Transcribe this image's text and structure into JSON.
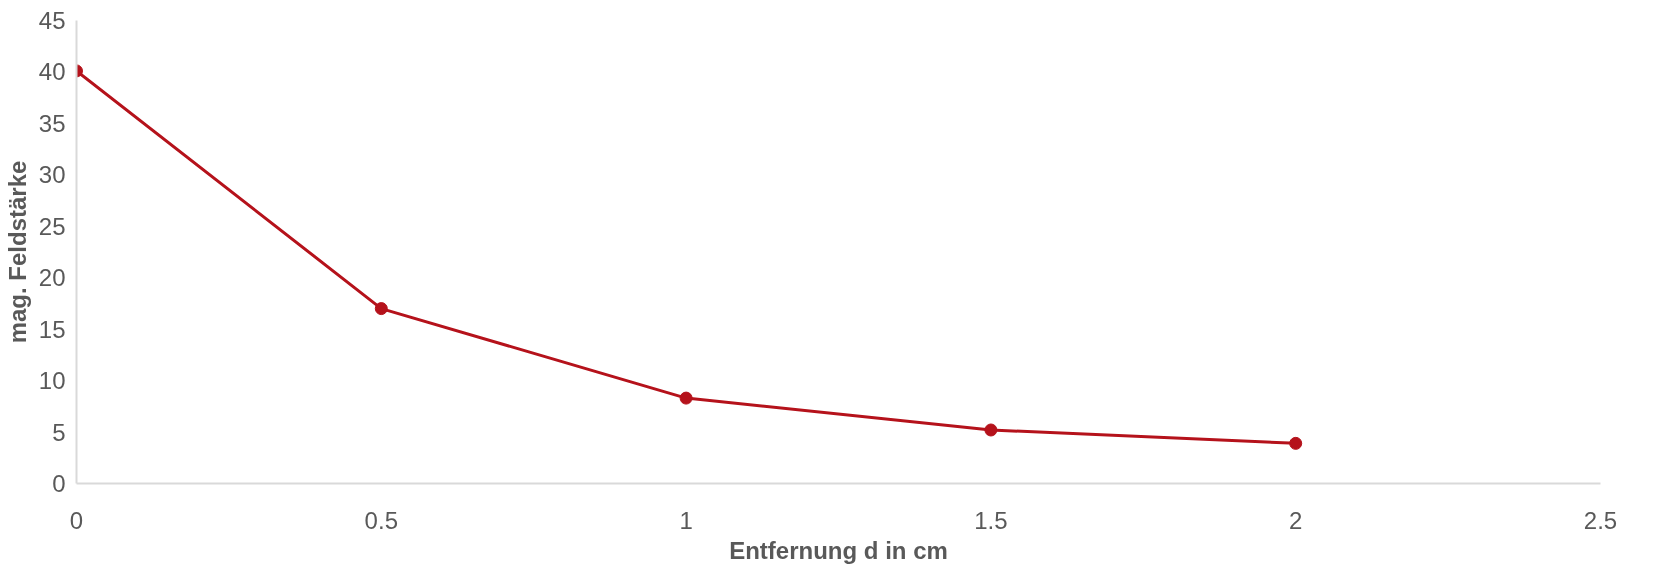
{
  "chart_data": {
    "type": "line",
    "xlabel": "Entfernung d in cm",
    "ylabel": "mag. Feldstärke",
    "x": [
      0,
      0.5,
      1,
      1.5,
      2
    ],
    "series": [
      {
        "color": "#b5121b",
        "values": [
          40.1,
          17,
          8.3,
          5.2,
          3.9
        ]
      }
    ],
    "xlim": [
      0,
      2.5
    ],
    "xticks": [
      0,
      0.5,
      1,
      1.5,
      2,
      2.5
    ],
    "ylim": [
      0,
      45
    ],
    "yticks": [
      0,
      5,
      10,
      15,
      20,
      25,
      30,
      35,
      40,
      45
    ],
    "grid": false,
    "marker": "circle",
    "line_style": "solid"
  }
}
